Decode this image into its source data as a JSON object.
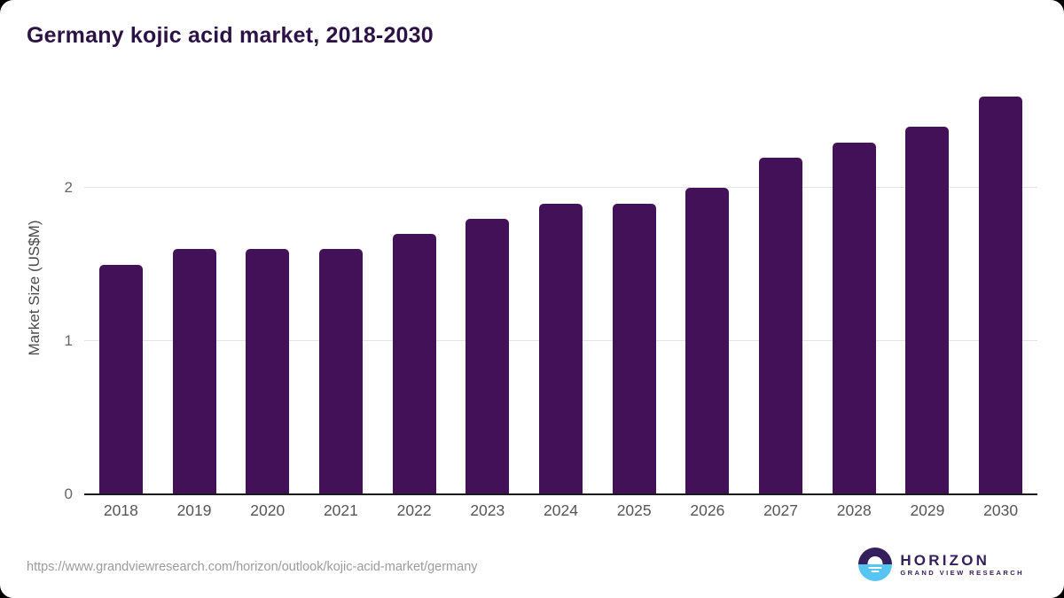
{
  "chart_data": {
    "type": "bar",
    "title": "Germany kojic acid market, 2018-2030",
    "ylabel": "Market Size (US$M)",
    "xlabel": "",
    "categories": [
      "2018",
      "2019",
      "2020",
      "2021",
      "2022",
      "2023",
      "2024",
      "2025",
      "2026",
      "2027",
      "2028",
      "2029",
      "2030"
    ],
    "values": [
      1.5,
      1.6,
      1.6,
      1.6,
      1.7,
      1.8,
      1.9,
      1.9,
      2.0,
      2.2,
      2.3,
      2.4,
      2.6
    ],
    "yticks": [
      0,
      1,
      2
    ],
    "ylim": [
      0,
      2.65
    ],
    "grid": "horizontal",
    "legend": "none",
    "bar_color": "#431158",
    "title_color": "#2d1245",
    "gridline_color": "#e3e3e3",
    "axis_line_color": "#1a1a1a"
  },
  "footer": {
    "url": "https://www.grandviewresearch.com/horizon/outlook/kojic-acid-market/germany",
    "logo": {
      "title": "HORIZON",
      "subtitle": "GRAND VIEW RESEARCH",
      "icon": "horizon-sunset-icon",
      "purple": "#34205c",
      "blue": "#56c5f2"
    }
  }
}
